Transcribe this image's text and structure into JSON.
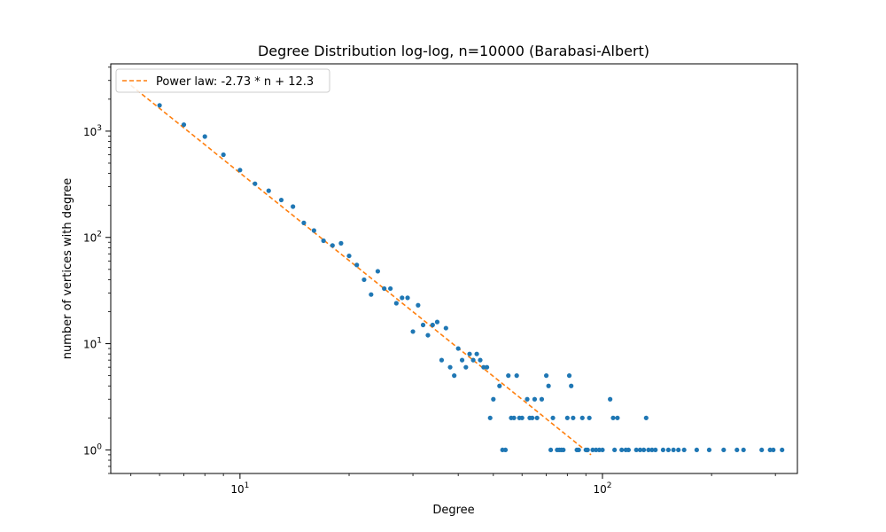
{
  "chart_data": {
    "type": "scatter",
    "title": "Degree Distribution log-log, n=10000 (Barabasi-Albert)",
    "xlabel": "Degree",
    "ylabel": "number of vertices with degree",
    "xscale": "log",
    "yscale": "log",
    "xlim": [
      4.4,
      345
    ],
    "ylim": [
      0.6,
      4300
    ],
    "grid": false,
    "legend_position": "top-left",
    "x_ticks": [
      {
        "value": 10,
        "label": "10",
        "exp": "1"
      },
      {
        "value": 100,
        "label": "10",
        "exp": "2"
      }
    ],
    "y_ticks": [
      {
        "value": 1,
        "label": "10",
        "exp": "0"
      },
      {
        "value": 10,
        "label": "10",
        "exp": "1"
      },
      {
        "value": 100,
        "label": "10",
        "exp": "2"
      },
      {
        "value": 1000,
        "label": "10",
        "exp": "3"
      }
    ],
    "fit_line": {
      "label": "Power law: -2.73 * n + 12.3",
      "x": [
        5,
        93
      ],
      "y": [
        2700,
        0.9
      ],
      "color": "#ff7f0e",
      "style": "dashed"
    },
    "scatter": {
      "color": "#1f77b4",
      "points": [
        [
          6,
          1750
        ],
        [
          7,
          1150
        ],
        [
          8,
          890
        ],
        [
          9,
          600
        ],
        [
          10,
          430
        ],
        [
          11,
          320
        ],
        [
          12,
          275
        ],
        [
          13,
          225
        ],
        [
          14,
          195
        ],
        [
          15,
          137
        ],
        [
          16,
          116
        ],
        [
          17,
          93
        ],
        [
          18,
          84
        ],
        [
          19,
          88
        ],
        [
          20,
          67
        ],
        [
          21,
          55
        ],
        [
          22,
          40
        ],
        [
          23,
          29
        ],
        [
          24,
          48
        ],
        [
          25,
          33
        ],
        [
          26,
          33
        ],
        [
          27,
          24
        ],
        [
          28,
          27
        ],
        [
          29,
          27
        ],
        [
          30,
          13
        ],
        [
          31,
          23
        ],
        [
          32,
          15
        ],
        [
          33,
          12
        ],
        [
          34,
          15
        ],
        [
          35,
          16
        ],
        [
          36,
          7
        ],
        [
          37,
          14
        ],
        [
          38,
          6
        ],
        [
          39,
          5
        ],
        [
          40,
          9
        ],
        [
          41,
          7
        ],
        [
          42,
          6
        ],
        [
          43,
          8
        ],
        [
          44,
          7
        ],
        [
          45,
          8
        ],
        [
          46,
          7
        ],
        [
          47,
          6
        ],
        [
          48,
          6
        ],
        [
          49,
          2
        ],
        [
          50,
          3
        ],
        [
          52,
          4
        ],
        [
          53,
          1
        ],
        [
          54,
          1
        ],
        [
          55,
          5
        ],
        [
          56,
          2
        ],
        [
          57,
          2
        ],
        [
          58,
          5
        ],
        [
          59,
          2
        ],
        [
          60,
          2
        ],
        [
          62,
          3
        ],
        [
          63,
          2
        ],
        [
          64,
          2
        ],
        [
          65,
          3
        ],
        [
          66,
          2
        ],
        [
          68,
          3
        ],
        [
          70,
          5
        ],
        [
          71,
          4
        ],
        [
          72,
          1
        ],
        [
          73,
          2
        ],
        [
          75,
          1
        ],
        [
          76,
          1
        ],
        [
          77,
          1
        ],
        [
          78,
          1
        ],
        [
          80,
          2
        ],
        [
          81,
          5
        ],
        [
          82,
          4
        ],
        [
          83,
          2
        ],
        [
          85,
          1
        ],
        [
          86,
          1
        ],
        [
          88,
          2
        ],
        [
          90,
          1
        ],
        [
          91,
          1
        ],
        [
          92,
          2
        ],
        [
          94,
          1
        ],
        [
          96,
          1
        ],
        [
          98,
          1
        ],
        [
          100,
          1
        ],
        [
          105,
          3
        ],
        [
          107,
          2
        ],
        [
          108,
          1
        ],
        [
          110,
          2
        ],
        [
          113,
          1
        ],
        [
          116,
          1
        ],
        [
          118,
          1
        ],
        [
          124,
          1
        ],
        [
          127,
          1
        ],
        [
          130,
          1
        ],
        [
          132,
          2
        ],
        [
          134,
          1
        ],
        [
          137,
          1
        ],
        [
          140,
          1
        ],
        [
          147,
          1
        ],
        [
          152,
          1
        ],
        [
          157,
          1
        ],
        [
          162,
          1
        ],
        [
          168,
          1
        ],
        [
          182,
          1
        ],
        [
          197,
          1
        ],
        [
          216,
          1
        ],
        [
          235,
          1
        ],
        [
          245,
          1
        ],
        [
          275,
          1
        ],
        [
          290,
          1
        ],
        [
          296,
          1
        ],
        [
          313,
          1
        ]
      ]
    }
  }
}
